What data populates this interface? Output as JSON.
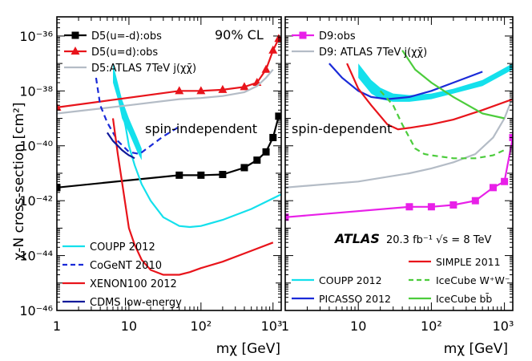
{
  "chart_data": [
    {
      "type": "line",
      "panel": "left",
      "xlabel": "mχ [GeV]",
      "ylabel": "χ-N cross-section [cm²]",
      "xscale": "log",
      "yscale": "log",
      "xlim": [
        1,
        1300
      ],
      "ylim": [
        1e-46,
        5e-36
      ],
      "x_ticks": [
        "1",
        "10",
        "10²",
        "10³"
      ],
      "y_ticks": [
        "10⁻³⁶",
        "10⁻³⁸",
        "10⁻⁴⁰",
        "10⁻⁴²",
        "10⁻⁴⁴",
        "10⁻⁴⁶"
      ],
      "annotations": [
        "90% CL",
        "spin-independent"
      ],
      "legend_top": [
        {
          "label": "D5(u=-d):obs",
          "color": "#000000",
          "marker": "square"
        },
        {
          "label": "D5(u=d):obs",
          "color": "#e8141b",
          "marker": "triangle"
        },
        {
          "label": "D5:ATLAS 7TeV j(χχ̄)",
          "color": "#b4bcc6",
          "marker": "none"
        }
      ],
      "legend_bottom": [
        {
          "label": "COUPP 2012",
          "color": "#14e0ec",
          "dash": "solid"
        },
        {
          "label": "CoGeNT 2010",
          "color": "#1a2ad8",
          "dash": "dashed"
        },
        {
          "label": "XENON100 2012",
          "color": "#e8141b",
          "dash": "solid"
        },
        {
          "label": "CDMS low-energy",
          "color": "#101a9a",
          "dash": "solid"
        }
      ],
      "series": [
        {
          "name": "D5(u=-d):obs",
          "color": "#000000",
          "marker": "square",
          "x": [
            1,
            50,
            100,
            200,
            400,
            600,
            800,
            1000,
            1200
          ],
          "y": [
            3e-42,
            8.5e-42,
            8.5e-42,
            9e-42,
            1.6e-41,
            3e-41,
            6e-41,
            2e-40,
            1.2e-39
          ],
          "marker_x": [
            1,
            50,
            100,
            200,
            400,
            600,
            800,
            1000,
            1200
          ]
        },
        {
          "name": "D5(u=d):obs",
          "color": "#e8141b",
          "marker": "triangle",
          "x": [
            1,
            50,
            100,
            200,
            400,
            600,
            800,
            1000,
            1200
          ],
          "y": [
            2.5e-39,
            1e-38,
            1e-38,
            1.1e-38,
            1.4e-38,
            2e-38,
            6e-38,
            3e-37,
            8e-37
          ],
          "marker_x": [
            1,
            50,
            100,
            200,
            400,
            600,
            800,
            1000,
            1200
          ]
        },
        {
          "name": "D5:ATLAS 7TeV j(χχ̄)",
          "color": "#b4bcc6",
          "x": [
            1,
            10,
            50,
            100,
            200,
            400,
            600,
            800,
            1000
          ],
          "y": [
            1.5e-39,
            3e-39,
            5e-39,
            5.5e-39,
            6.5e-39,
            9e-39,
            1.5e-38,
            3e-38,
            6e-38
          ]
        },
        {
          "name": "COUPP 2012",
          "color": "#14e0ec",
          "x": [
            8,
            9,
            10,
            12,
            15,
            20,
            30,
            50,
            70,
            100,
            200,
            500,
            1300
          ],
          "y": [
            2e-39,
            5e-40,
            1e-40,
            2e-41,
            4e-42,
            1e-42,
            2.5e-43,
            1.2e-43,
            1.1e-43,
            1.2e-43,
            2e-43,
            5e-43,
            1.7e-42
          ]
        },
        {
          "name": "CoGeNT 2010",
          "color": "#1a2ad8",
          "dash": "dashed",
          "x": [
            3.5,
            4,
            5,
            7,
            10,
            14,
            20,
            30,
            50
          ],
          "y": [
            3e-38,
            3e-39,
            7e-40,
            1.5e-40,
            6e-41,
            5e-41,
            1e-40,
            2.2e-40,
            5e-40
          ]
        },
        {
          "name": "XENON100 2012",
          "color": "#e8141b",
          "x": [
            6,
            7,
            8,
            10,
            12,
            15,
            20,
            30,
            50,
            70,
            100,
            200,
            500,
            1000
          ],
          "y": [
            1e-39,
            5e-41,
            5e-42,
            1e-43,
            2.5e-44,
            7e-45,
            3e-45,
            2e-45,
            2e-45,
            2.5e-45,
            3.5e-45,
            6e-45,
            1.5e-44,
            3e-44
          ]
        },
        {
          "name": "CDMS low-energy",
          "color": "#101a9a",
          "x": [
            5,
            6,
            7,
            8,
            9,
            10,
            11,
            12
          ],
          "y": [
            3e-40,
            1.5e-40,
            1e-40,
            7e-41,
            5.5e-41,
            4.5e-41,
            4e-41,
            3.5e-41
          ]
        }
      ],
      "bands": [
        {
          "name": "COUPP 2012",
          "color": "#14e0ec",
          "x": [
            6,
            7,
            8,
            10,
            13,
            15
          ],
          "y_low": [
            2e-38,
            5e-39,
            1e-39,
            3e-40,
            6e-41,
            3e-41
          ],
          "y_high": [
            1e-37,
            2e-38,
            5e-39,
            1e-39,
            2e-40,
            8e-41
          ]
        }
      ]
    },
    {
      "type": "line",
      "panel": "right",
      "xlabel": "mχ [GeV]",
      "xscale": "log",
      "yscale": "log",
      "xlim": [
        1,
        1300
      ],
      "ylim": [
        1e-46,
        5e-36
      ],
      "x_ticks": [
        "1",
        "10",
        "10²",
        "10³"
      ],
      "annotations": [
        "spin-dependent",
        "ATLAS",
        "20.3 fb⁻¹  √s = 8 TeV"
      ],
      "legend_top": [
        {
          "label": "D9:obs",
          "color": "#e820e8",
          "marker": "square"
        },
        {
          "label": "D9: ATLAS 7TeV j(χχ̄)",
          "color": "#b4bcc6",
          "marker": "none"
        }
      ],
      "legend_bottom": [
        {
          "label": "COUPP 2012",
          "color": "#14e0ec",
          "dash": "solid"
        },
        {
          "label": "PICASSO 2012",
          "color": "#1a2ad8",
          "dash": "solid"
        },
        {
          "label": "SIMPLE 2011",
          "color": "#e8141b",
          "dash": "solid"
        },
        {
          "label": "IceCube W⁺W⁻",
          "color": "#4ccc3c",
          "dash": "dashed"
        },
        {
          "label": "IceCube bb̄",
          "color": "#4ccc3c",
          "dash": "solid"
        }
      ],
      "series": [
        {
          "name": "D9:obs",
          "color": "#e820e8",
          "marker": "square",
          "x": [
            1,
            50,
            100,
            200,
            400,
            700,
            1000,
            1300
          ],
          "y": [
            2.5e-43,
            6e-43,
            6e-43,
            7e-43,
            1e-42,
            3e-42,
            5e-42,
            2e-40
          ],
          "marker_x": [
            1,
            50,
            100,
            200,
            400,
            700,
            1000,
            1300
          ]
        },
        {
          "name": "D9: ATLAS 7TeV j(χχ̄)",
          "color": "#b4bcc6",
          "x": [
            1,
            10,
            50,
            100,
            200,
            400,
            700,
            1000,
            1300
          ],
          "y": [
            3e-42,
            5e-42,
            1e-41,
            1.5e-41,
            2.5e-41,
            5e-41,
            2e-40,
            1e-39,
            6e-39
          ]
        },
        {
          "name": "PICASSO 2012",
          "color": "#1a2ad8",
          "x": [
            4,
            6,
            10,
            15,
            25,
            50,
            100,
            200,
            500
          ],
          "y": [
            1e-37,
            3e-38,
            1e-38,
            6e-39,
            5e-39,
            6e-39,
            1e-38,
            2e-38,
            5e-38
          ]
        },
        {
          "name": "SIMPLE 2011",
          "color": "#e8141b",
          "x": [
            7,
            10,
            15,
            25,
            35,
            50,
            100,
            200,
            500,
            1300
          ],
          "y": [
            1e-37,
            1.2e-38,
            3e-39,
            6e-40,
            4e-40,
            4.5e-40,
            6e-40,
            9e-40,
            2e-39,
            5e-39
          ]
        },
        {
          "name": "IceCube W⁺W⁻",
          "color": "#4ccc3c",
          "dash": "dashed",
          "x": [
            20,
            30,
            40,
            60,
            80,
            100,
            200,
            400,
            700,
            1000
          ],
          "y": [
            1e-38,
            3e-39,
            6e-40,
            8e-41,
            5e-41,
            4.5e-41,
            3.5e-41,
            3.5e-41,
            4.5e-41,
            7e-41
          ]
        },
        {
          "name": "IceCube bb̄",
          "color": "#4ccc3c",
          "x": [
            40,
            60,
            100,
            200,
            500,
            1000
          ],
          "y": [
            3e-37,
            6e-38,
            2e-38,
            6e-39,
            1.5e-39,
            1e-39
          ]
        }
      ],
      "bands": [
        {
          "name": "COUPP 2012",
          "color": "#14e0ec",
          "x": [
            10,
            15,
            20,
            30,
            50,
            100,
            200,
            500,
            1300
          ],
          "y_low": [
            3e-38,
            8e-39,
            5e-39,
            4e-39,
            4e-39,
            5e-39,
            8e-39,
            1.5e-38,
            6e-38
          ],
          "y_high": [
            1e-37,
            2.5e-38,
            1.3e-38,
            8e-39,
            7e-39,
            8e-39,
            1.2e-38,
            2.5e-38,
            1e-37
          ]
        }
      ]
    }
  ]
}
